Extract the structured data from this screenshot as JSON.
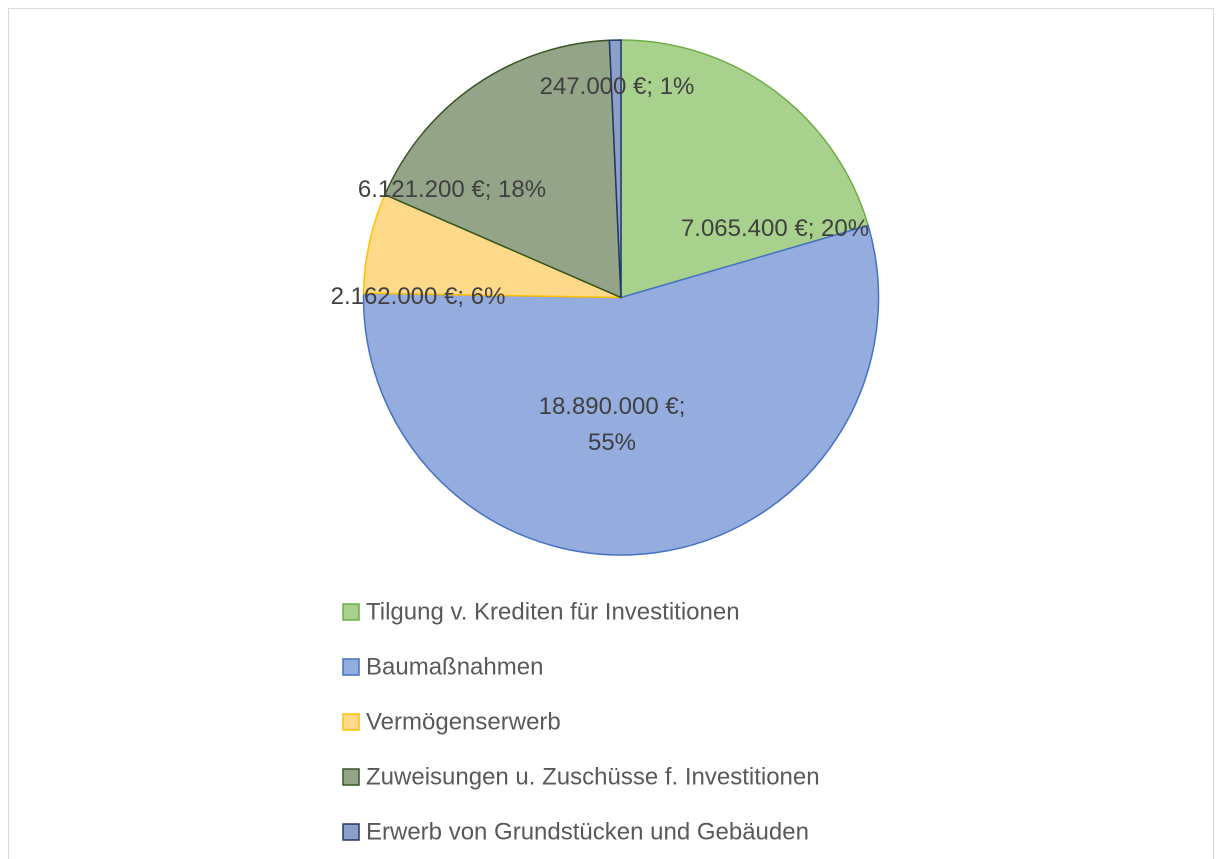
{
  "chart_data": {
    "type": "pie",
    "categories": [
      "Tilgung v. Krediten für Investitionen",
      "Baumaßnahmen",
      "Vermögenserwerb",
      "Zuweisungen u. Zuschüsse f. Investitionen",
      "Erwerb von Grundstücken und Gebäuden"
    ],
    "values": [
      7065400,
      18890000,
      2162000,
      6121200,
      247000
    ],
    "value_labels": [
      "7.065.400 €; 20%",
      "18.890.000 €; 55%",
      "2.162.000 €; 6%",
      "6.121.200 €; 18%",
      "247.000 €; 1%"
    ],
    "colors": [
      "#a9d18e",
      "#95acdf",
      "#ffd98a",
      "#94a488",
      "#8c9fc9"
    ],
    "edge_colors": [
      "#70ad47",
      "#4472c4",
      "#ffc000",
      "#375623",
      "#203864"
    ],
    "legend": "bottom"
  }
}
